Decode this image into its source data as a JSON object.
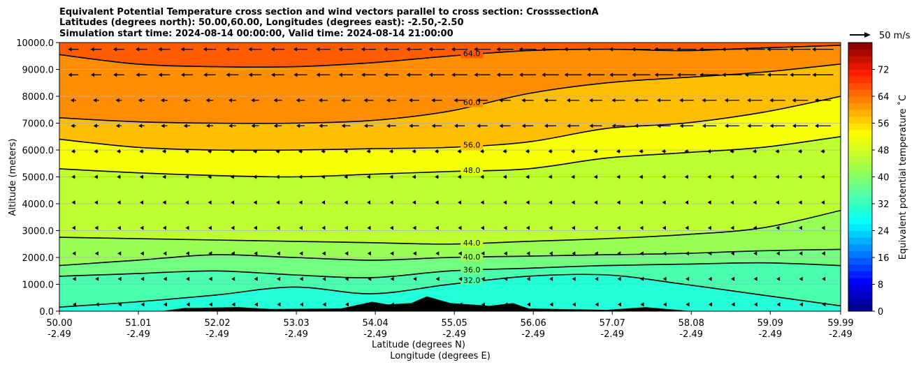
{
  "chart_data": {
    "type": "heatmap",
    "title_lines": [
      "Equivalent Potential Temperature cross section and wind vectors parallel to cross section: CrosssectionA",
      "Latitudes (degrees north): 50.00,60.00, Longitudes (degrees east): -2.50,-2.50",
      "Simulation start time: 2024-08-14 00:00:00, Valid time: 2024-08-14 21:00:00"
    ],
    "ylabel": "Altitude (meters)",
    "xlabel_line1": "Latitude (degrees N)",
    "xlabel_line2": "Longitude (degrees E)",
    "ylim": [
      0,
      10000
    ],
    "y_ticks": [
      "0.0",
      "1000.0",
      "2000.0",
      "3000.0",
      "4000.0",
      "5000.0",
      "6000.0",
      "7000.0",
      "8000.0",
      "9000.0",
      "10000.0"
    ],
    "x_ticks": [
      {
        "lat": "50.00",
        "lon": "-2.49"
      },
      {
        "lat": "51.01",
        "lon": "-2.49"
      },
      {
        "lat": "52.02",
        "lon": "-2.49"
      },
      {
        "lat": "53.03",
        "lon": "-2.49"
      },
      {
        "lat": "54.04",
        "lon": "-2.49"
      },
      {
        "lat": "55.05",
        "lon": "-2.49"
      },
      {
        "lat": "56.06",
        "lon": "-2.49"
      },
      {
        "lat": "57.07",
        "lon": "-2.49"
      },
      {
        "lat": "58.08",
        "lon": "-2.49"
      },
      {
        "lat": "59.09",
        "lon": "-2.49"
      },
      {
        "lat": "59.99",
        "lon": "-2.49"
      }
    ],
    "xlim_lat": [
      50.0,
      59.99
    ],
    "grid": "horizontal",
    "colorbar": {
      "label": "Equivalent potential temperature ˚C",
      "range": [
        0,
        80
      ],
      "ticks": [
        "0",
        "8",
        "16",
        "24",
        "32",
        "40",
        "48",
        "56",
        "64",
        "72"
      ]
    },
    "quiver_key": {
      "label": "50 m/s",
      "speed": 50
    },
    "contours": [
      {
        "value": 32,
        "label": "32.0",
        "heights": [
          150,
          350,
          600,
          900,
          650,
          1000,
          1300,
          1350,
          1000,
          600,
          200
        ]
      },
      {
        "value": 36,
        "label": "36.0",
        "heights": [
          1300,
          1400,
          1500,
          1350,
          1250,
          1500,
          1600,
          1700,
          1750,
          1800,
          1700
        ]
      },
      {
        "value": 40,
        "label": "40.0",
        "heights": [
          1700,
          1900,
          2100,
          2000,
          1900,
          2000,
          2050,
          2100,
          2150,
          2250,
          2300
        ]
      },
      {
        "value": 44,
        "label": "44.0",
        "heights": [
          2750,
          2700,
          2650,
          2600,
          2550,
          2500,
          2600,
          2700,
          2850,
          3100,
          3750
        ]
      },
      {
        "value": 48,
        "label": "48.0",
        "heights": [
          5300,
          5150,
          5050,
          5000,
          5100,
          5200,
          5300,
          5700,
          5900,
          6100,
          6500
        ]
      },
      {
        "value": 56,
        "label": "56.0",
        "heights": [
          6400,
          6100,
          6000,
          6000,
          6050,
          6100,
          6300,
          6800,
          7000,
          7400,
          8000
        ]
      },
      {
        "value": 60,
        "label": "60.0",
        "heights": [
          7200,
          7050,
          7000,
          7000,
          7100,
          7450,
          8100,
          8500,
          8700,
          8900,
          9200
        ]
      },
      {
        "value": 64,
        "label": "64.0",
        "heights": [
          9550,
          9200,
          9100,
          9100,
          9250,
          9500,
          9700,
          9750,
          9700,
          9800,
          9900
        ]
      }
    ],
    "terrain": [
      {
        "lat": 50.0,
        "h": 0
      },
      {
        "lat": 51.3,
        "h": 0
      },
      {
        "lat": 51.6,
        "h": 120
      },
      {
        "lat": 52.3,
        "h": 150
      },
      {
        "lat": 52.7,
        "h": 80
      },
      {
        "lat": 53.6,
        "h": 100
      },
      {
        "lat": 54.0,
        "h": 350
      },
      {
        "lat": 54.2,
        "h": 250
      },
      {
        "lat": 54.5,
        "h": 300
      },
      {
        "lat": 54.7,
        "h": 550
      },
      {
        "lat": 55.0,
        "h": 300
      },
      {
        "lat": 55.5,
        "h": 200
      },
      {
        "lat": 55.8,
        "h": 300
      },
      {
        "lat": 56.0,
        "h": 100
      },
      {
        "lat": 57.0,
        "h": 50
      },
      {
        "lat": 57.5,
        "h": 150
      },
      {
        "lat": 58.1,
        "h": 0
      },
      {
        "lat": 59.99,
        "h": 0
      }
    ]
  }
}
